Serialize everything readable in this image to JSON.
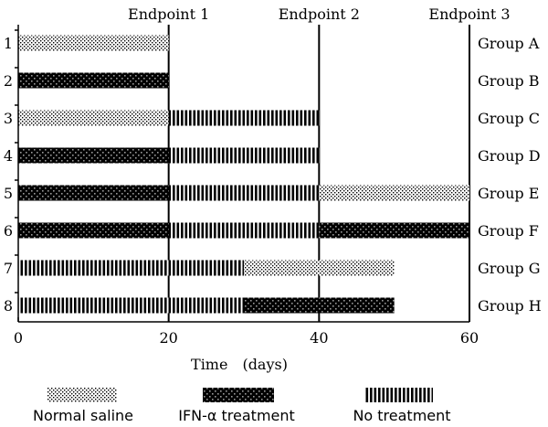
{
  "chart_data": {
    "type": "timeline",
    "xlabel": "Time　(days)",
    "xlim": [
      0,
      60
    ],
    "xticks": [
      {
        "value": 0,
        "label": "0"
      },
      {
        "value": 20,
        "label": "20"
      },
      {
        "value": 40,
        "label": "40"
      },
      {
        "value": 60,
        "label": "60"
      }
    ],
    "endpoints": [
      {
        "day": 20,
        "label": "Endpoint 1"
      },
      {
        "day": 40,
        "label": "Endpoint 2"
      },
      {
        "day": 60,
        "label": "Endpoint 3"
      }
    ],
    "legend": [
      {
        "key": "saline",
        "label": "Normal saline"
      },
      {
        "key": "ifn",
        "label": "IFN-α treatment"
      },
      {
        "key": "none",
        "label": "No treatment"
      }
    ],
    "rows": [
      {
        "index": "1",
        "group": "Group A",
        "segments": [
          {
            "start": 0,
            "end": 20,
            "type": "saline"
          }
        ]
      },
      {
        "index": "2",
        "group": "Group B",
        "segments": [
          {
            "start": 0,
            "end": 20,
            "type": "ifn"
          }
        ]
      },
      {
        "index": "3",
        "group": "Group C",
        "segments": [
          {
            "start": 0,
            "end": 20,
            "type": "saline"
          },
          {
            "start": 20,
            "end": 40,
            "type": "none"
          }
        ]
      },
      {
        "index": "4",
        "group": "Group D",
        "segments": [
          {
            "start": 0,
            "end": 20,
            "type": "ifn"
          },
          {
            "start": 20,
            "end": 40,
            "type": "none"
          }
        ]
      },
      {
        "index": "5",
        "group": "Group E",
        "segments": [
          {
            "start": 0,
            "end": 20,
            "type": "ifn"
          },
          {
            "start": 20,
            "end": 40,
            "type": "none"
          },
          {
            "start": 40,
            "end": 60,
            "type": "saline"
          }
        ]
      },
      {
        "index": "6",
        "group": "Group F",
        "segments": [
          {
            "start": 0,
            "end": 20,
            "type": "ifn"
          },
          {
            "start": 20,
            "end": 40,
            "type": "none"
          },
          {
            "start": 40,
            "end": 60,
            "type": "ifn"
          }
        ]
      },
      {
        "index": "7",
        "group": "Group G",
        "segments": [
          {
            "start": 0,
            "end": 30,
            "type": "none"
          },
          {
            "start": 30,
            "end": 50,
            "type": "saline"
          }
        ]
      },
      {
        "index": "8",
        "group": "Group H",
        "segments": [
          {
            "start": 0,
            "end": 30,
            "type": "none"
          },
          {
            "start": 30,
            "end": 50,
            "type": "ifn"
          }
        ]
      }
    ]
  }
}
